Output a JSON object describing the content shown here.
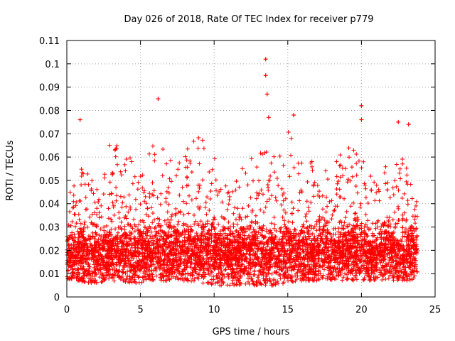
{
  "chart_data": {
    "type": "scatter",
    "title": "Day 026 of 2018, Rate Of TEC Index for receiver p779",
    "xlabel": "GPS time / hours",
    "ylabel": "ROTI / TECUs",
    "xlim": [
      0,
      25
    ],
    "ylim": [
      0,
      0.11
    ],
    "xticks": [
      0,
      5,
      10,
      15,
      20,
      25
    ],
    "yticks": [
      0,
      0.01,
      0.02,
      0.03,
      0.04,
      0.05,
      0.06,
      0.07,
      0.08,
      0.09,
      0.1,
      0.11
    ],
    "ytick_labels": [
      "0",
      "0.01",
      "0.02",
      "0.03",
      "0.04",
      "0.05",
      "0.06",
      "0.07",
      "0.08",
      "0.09",
      "0.1",
      "0.11"
    ],
    "grid": true,
    "marker": "+",
    "color": "#ff0000",
    "x_range_of_data": [
      0,
      23.8
    ],
    "typical_range": [
      0.005,
      0.045
    ],
    "series": [
      {
        "name": "ROTI",
        "notable_points": [
          {
            "x": 0.9,
            "y": 0.076
          },
          {
            "x": 6.2,
            "y": 0.085
          },
          {
            "x": 13.5,
            "y": 0.102
          },
          {
            "x": 13.5,
            "y": 0.095
          },
          {
            "x": 13.6,
            "y": 0.087
          },
          {
            "x": 13.7,
            "y": 0.077
          },
          {
            "x": 15.4,
            "y": 0.078
          },
          {
            "x": 20.0,
            "y": 0.082
          },
          {
            "x": 20.0,
            "y": 0.076
          },
          {
            "x": 22.5,
            "y": 0.075
          },
          {
            "x": 23.2,
            "y": 0.074
          }
        ],
        "envelope": [
          {
            "x": 0.0,
            "upper": 0.042,
            "lower": 0.008
          },
          {
            "x": 1.0,
            "upper": 0.055,
            "lower": 0.006
          },
          {
            "x": 2.0,
            "upper": 0.05,
            "lower": 0.006
          },
          {
            "x": 3.0,
            "upper": 0.068,
            "lower": 0.007
          },
          {
            "x": 4.0,
            "upper": 0.062,
            "lower": 0.006
          },
          {
            "x": 5.0,
            "upper": 0.055,
            "lower": 0.006
          },
          {
            "x": 6.0,
            "upper": 0.068,
            "lower": 0.007
          },
          {
            "x": 7.0,
            "upper": 0.065,
            "lower": 0.007
          },
          {
            "x": 8.0,
            "upper": 0.062,
            "lower": 0.007
          },
          {
            "x": 9.0,
            "upper": 0.07,
            "lower": 0.006
          },
          {
            "x": 10.0,
            "upper": 0.06,
            "lower": 0.005
          },
          {
            "x": 11.0,
            "upper": 0.045,
            "lower": 0.005
          },
          {
            "x": 12.0,
            "upper": 0.058,
            "lower": 0.005
          },
          {
            "x": 13.0,
            "upper": 0.065,
            "lower": 0.005
          },
          {
            "x": 14.0,
            "upper": 0.06,
            "lower": 0.005
          },
          {
            "x": 15.0,
            "upper": 0.072,
            "lower": 0.006
          },
          {
            "x": 16.0,
            "upper": 0.06,
            "lower": 0.007
          },
          {
            "x": 17.0,
            "upper": 0.06,
            "lower": 0.007
          },
          {
            "x": 18.0,
            "upper": 0.055,
            "lower": 0.007
          },
          {
            "x": 19.0,
            "upper": 0.066,
            "lower": 0.007
          },
          {
            "x": 20.0,
            "upper": 0.06,
            "lower": 0.007
          },
          {
            "x": 21.0,
            "upper": 0.05,
            "lower": 0.007
          },
          {
            "x": 22.0,
            "upper": 0.06,
            "lower": 0.007
          },
          {
            "x": 23.0,
            "upper": 0.06,
            "lower": 0.007
          },
          {
            "x": 23.8,
            "upper": 0.045,
            "lower": 0.007
          }
        ]
      }
    ]
  }
}
